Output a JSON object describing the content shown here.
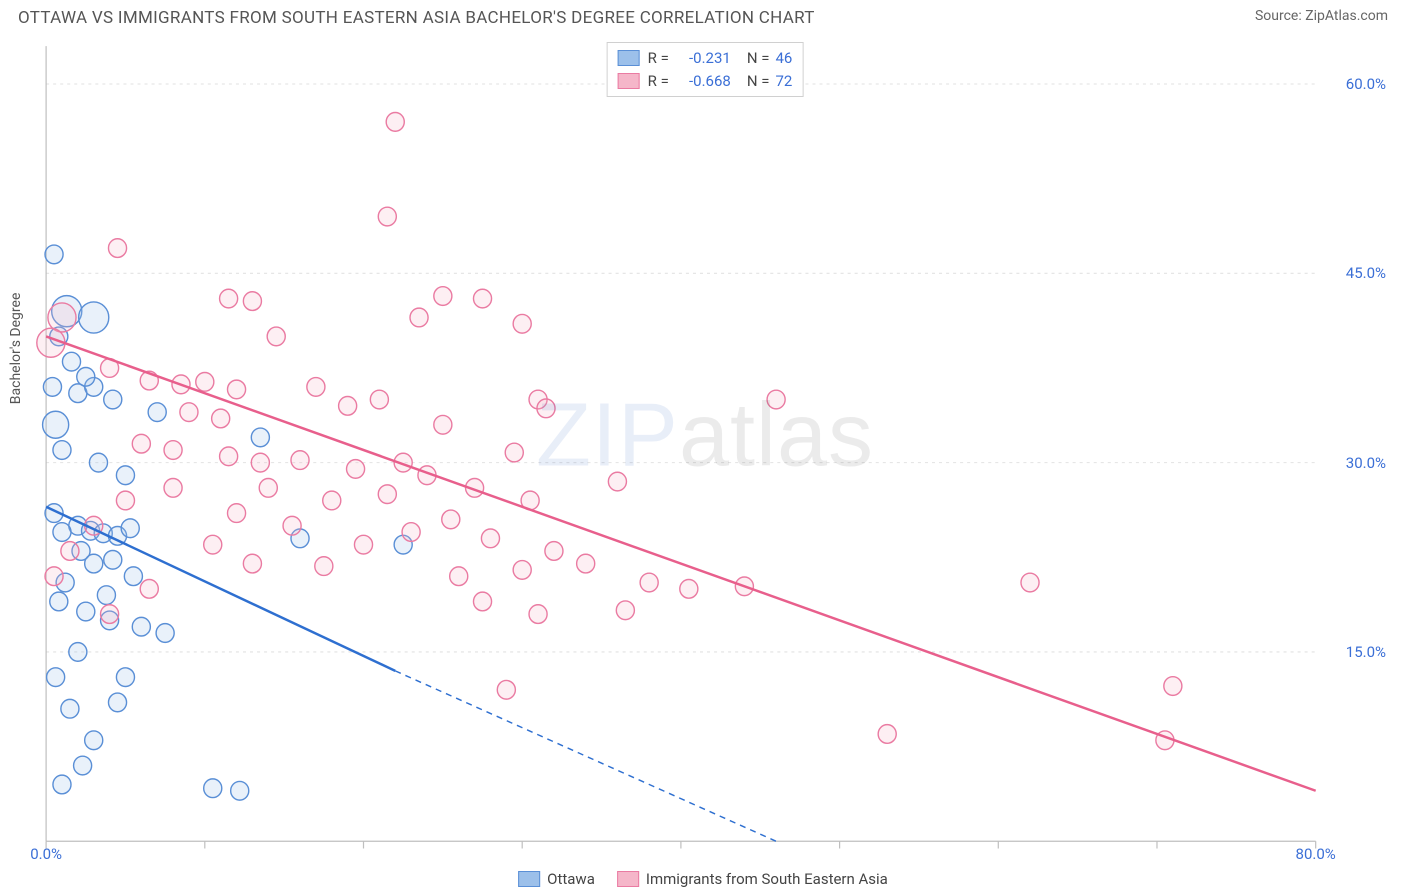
{
  "title": "OTTAWA VS IMMIGRANTS FROM SOUTH EASTERN ASIA BACHELOR'S DEGREE CORRELATION CHART",
  "source_prefix": "Source: ",
  "source_name": "ZipAtlas.com",
  "ylabel": "Bachelor's Degree",
  "watermark": {
    "part1": "ZIP",
    "part2": "atlas"
  },
  "chart": {
    "type": "scatter",
    "background_color": "#ffffff",
    "plot_border_color": "#bfbfbf",
    "grid_color": "#e2e2e2",
    "xlim": [
      0,
      80
    ],
    "ylim": [
      0,
      63
    ],
    "xticks": [
      0,
      10,
      20,
      30,
      40,
      50,
      60,
      70,
      80
    ],
    "xtick_labels": [
      "0.0%",
      "",
      "",
      "",
      "",
      "",
      "",
      "",
      "80.0%"
    ],
    "ytick_values": [
      15,
      30,
      45,
      60
    ],
    "ytick_labels": [
      "15.0%",
      "30.0%",
      "45.0%",
      "60.0%"
    ],
    "tick_label_color": "#3b6fd6",
    "tick_label_fontsize": 15,
    "axis_label_color": "#555555",
    "marker_radius": 9,
    "marker_radius_large": 15,
    "marker_stroke_width": 1.4,
    "marker_fill_opacity": 0.22,
    "trend_line_width": 2.4,
    "trend_dash": "6 5"
  },
  "series": [
    {
      "name": "Ottawa",
      "color_stroke": "#5a8fd6",
      "color_fill": "#9cc0ea",
      "trend_color": "#2e6fd0",
      "r": "-0.231",
      "n": "46",
      "trend": {
        "x1": 0,
        "y1": 26.5,
        "x2": 22,
        "y2": 13.5,
        "x2_ext": 46,
        "y2_ext": 0
      },
      "points": [
        {
          "x": 0.5,
          "y": 46.5
        },
        {
          "x": 1.3,
          "y": 42,
          "r": 15
        },
        {
          "x": 3.0,
          "y": 41.5,
          "r": 15
        },
        {
          "x": 0.8,
          "y": 40
        },
        {
          "x": 1.6,
          "y": 38
        },
        {
          "x": 0.4,
          "y": 36
        },
        {
          "x": 2.0,
          "y": 35.5
        },
        {
          "x": 3.0,
          "y": 36
        },
        {
          "x": 4.2,
          "y": 35
        },
        {
          "x": 0.6,
          "y": 33,
          "r": 13
        },
        {
          "x": 2.5,
          "y": 36.8
        },
        {
          "x": 7.0,
          "y": 34
        },
        {
          "x": 1.0,
          "y": 31
        },
        {
          "x": 3.3,
          "y": 30
        },
        {
          "x": 5.0,
          "y": 29
        },
        {
          "x": 0.5,
          "y": 26
        },
        {
          "x": 2.0,
          "y": 25
        },
        {
          "x": 1.0,
          "y": 24.5
        },
        {
          "x": 2.8,
          "y": 24.6
        },
        {
          "x": 3.6,
          "y": 24.4
        },
        {
          "x": 4.5,
          "y": 24.2
        },
        {
          "x": 5.3,
          "y": 24.8
        },
        {
          "x": 2.2,
          "y": 23
        },
        {
          "x": 13.5,
          "y": 32
        },
        {
          "x": 16,
          "y": 24
        },
        {
          "x": 3.0,
          "y": 22
        },
        {
          "x": 4.2,
          "y": 22.3
        },
        {
          "x": 5.5,
          "y": 21
        },
        {
          "x": 1.2,
          "y": 20.5
        },
        {
          "x": 3.8,
          "y": 19.5
        },
        {
          "x": 0.8,
          "y": 19
        },
        {
          "x": 2.5,
          "y": 18.2
        },
        {
          "x": 4.0,
          "y": 17.5
        },
        {
          "x": 6.0,
          "y": 17
        },
        {
          "x": 7.5,
          "y": 16.5
        },
        {
          "x": 22.5,
          "y": 23.5
        },
        {
          "x": 2.0,
          "y": 15
        },
        {
          "x": 5.0,
          "y": 13
        },
        {
          "x": 1.5,
          "y": 10.5
        },
        {
          "x": 4.5,
          "y": 11
        },
        {
          "x": 3.0,
          "y": 8
        },
        {
          "x": 10.5,
          "y": 4.2
        },
        {
          "x": 12.2,
          "y": 4.0
        },
        {
          "x": 1.0,
          "y": 4.5
        },
        {
          "x": 2.3,
          "y": 6
        },
        {
          "x": 0.6,
          "y": 13
        }
      ]
    },
    {
      "name": "Immigrants from South Eastern Asia",
      "color_stroke": "#ea7ba2",
      "color_fill": "#f5b6c9",
      "trend_color": "#e85f8c",
      "r": "-0.668",
      "n": "72",
      "trend": {
        "x1": 0,
        "y1": 40,
        "x2": 80,
        "y2": 4,
        "x2_ext": 80,
        "y2_ext": 4
      },
      "points": [
        {
          "x": 22,
          "y": 57
        },
        {
          "x": 4.5,
          "y": 47
        },
        {
          "x": 21.5,
          "y": 49.5
        },
        {
          "x": 1.0,
          "y": 41.5,
          "r": 14
        },
        {
          "x": 11.5,
          "y": 43
        },
        {
          "x": 13,
          "y": 42.8
        },
        {
          "x": 25,
          "y": 43.2
        },
        {
          "x": 27.5,
          "y": 43
        },
        {
          "x": 30,
          "y": 41
        },
        {
          "x": 23.5,
          "y": 41.5
        },
        {
          "x": 14.5,
          "y": 40
        },
        {
          "x": 0.3,
          "y": 39.5,
          "r": 14
        },
        {
          "x": 4,
          "y": 37.5
        },
        {
          "x": 6.5,
          "y": 36.5
        },
        {
          "x": 8.5,
          "y": 36.2
        },
        {
          "x": 10,
          "y": 36.4
        },
        {
          "x": 12,
          "y": 35.8
        },
        {
          "x": 17,
          "y": 36
        },
        {
          "x": 9,
          "y": 34
        },
        {
          "x": 11,
          "y": 33.5
        },
        {
          "x": 19,
          "y": 34.5
        },
        {
          "x": 21,
          "y": 35
        },
        {
          "x": 6,
          "y": 31.5
        },
        {
          "x": 8,
          "y": 31
        },
        {
          "x": 11.5,
          "y": 30.5
        },
        {
          "x": 13.5,
          "y": 30
        },
        {
          "x": 16,
          "y": 30.2
        },
        {
          "x": 19.5,
          "y": 29.5
        },
        {
          "x": 14,
          "y": 28
        },
        {
          "x": 18,
          "y": 27
        },
        {
          "x": 21.5,
          "y": 27.5
        },
        {
          "x": 24,
          "y": 29
        },
        {
          "x": 27,
          "y": 28
        },
        {
          "x": 31,
          "y": 35
        },
        {
          "x": 31.5,
          "y": 34.3
        },
        {
          "x": 46,
          "y": 35
        },
        {
          "x": 30.5,
          "y": 27
        },
        {
          "x": 25.5,
          "y": 25.5
        },
        {
          "x": 28,
          "y": 24
        },
        {
          "x": 23,
          "y": 24.5
        },
        {
          "x": 20,
          "y": 23.5
        },
        {
          "x": 32,
          "y": 23
        },
        {
          "x": 36,
          "y": 28.5
        },
        {
          "x": 30,
          "y": 21.5
        },
        {
          "x": 26,
          "y": 21
        },
        {
          "x": 34,
          "y": 22
        },
        {
          "x": 38,
          "y": 20.5
        },
        {
          "x": 40.5,
          "y": 20
        },
        {
          "x": 44,
          "y": 20.2
        },
        {
          "x": 27.5,
          "y": 19
        },
        {
          "x": 31,
          "y": 18
        },
        {
          "x": 62,
          "y": 20.5
        },
        {
          "x": 36.5,
          "y": 18.3
        },
        {
          "x": 29,
          "y": 12
        },
        {
          "x": 53,
          "y": 8.5
        },
        {
          "x": 70.5,
          "y": 8
        },
        {
          "x": 71,
          "y": 12.3
        },
        {
          "x": 12,
          "y": 26
        },
        {
          "x": 15.5,
          "y": 25
        },
        {
          "x": 13,
          "y": 22
        },
        {
          "x": 10.5,
          "y": 23.5
        },
        {
          "x": 17.5,
          "y": 21.8
        },
        {
          "x": 22.5,
          "y": 30
        },
        {
          "x": 29.5,
          "y": 30.8
        },
        {
          "x": 25,
          "y": 33
        },
        {
          "x": 8,
          "y": 28
        },
        {
          "x": 5,
          "y": 27
        },
        {
          "x": 3,
          "y": 25
        },
        {
          "x": 1.5,
          "y": 23
        },
        {
          "x": 0.5,
          "y": 21
        },
        {
          "x": 6.5,
          "y": 20
        },
        {
          "x": 4,
          "y": 18
        }
      ]
    }
  ],
  "legend_bottom": [
    {
      "label": "Ottawa",
      "series_idx": 0
    },
    {
      "label": "Immigrants from South Eastern Asia",
      "series_idx": 1
    }
  ]
}
